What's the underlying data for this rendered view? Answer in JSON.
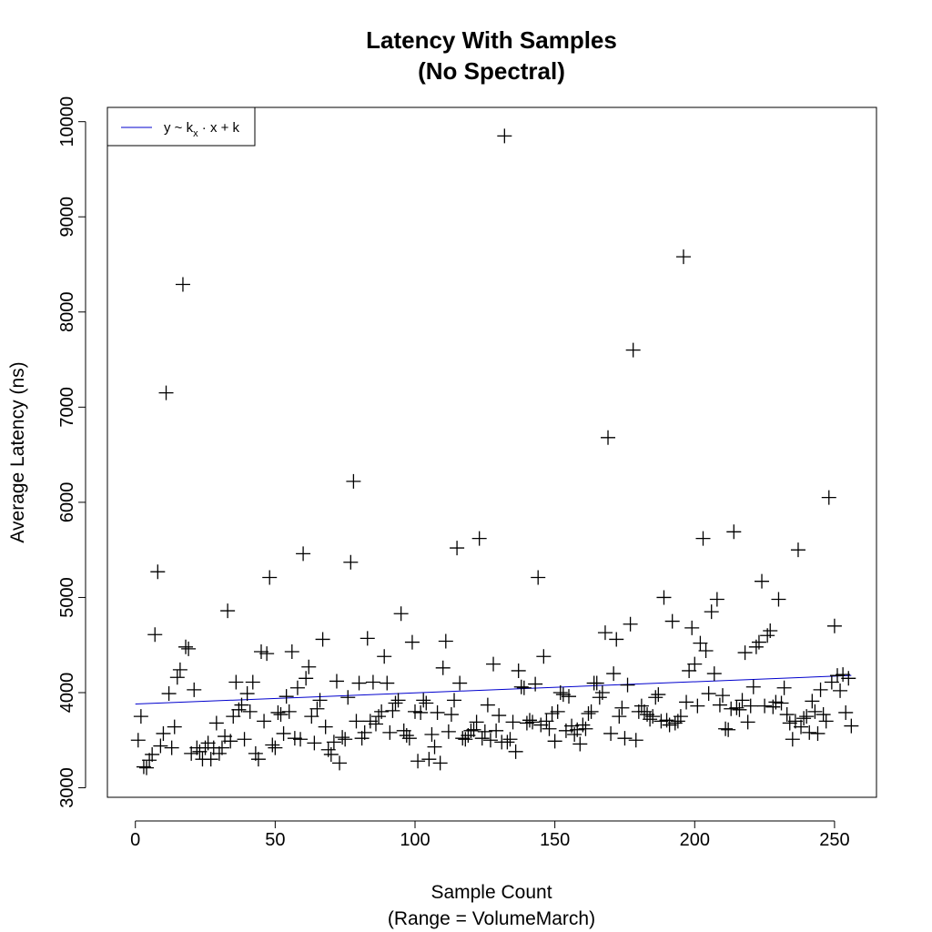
{
  "chart_data": {
    "type": "scatter",
    "title": [
      "Latency With Samples",
      "(No Spectral)"
    ],
    "xlabel": [
      "Sample Count",
      "(Range = VolumeMarch)"
    ],
    "ylabel": "Average Latency (ns)",
    "xlim": [
      -10,
      265
    ],
    "ylim": [
      2900,
      10150
    ],
    "x_ticks": [
      0,
      50,
      100,
      150,
      200,
      250
    ],
    "y_ticks": [
      3000,
      4000,
      5000,
      6000,
      7000,
      8000,
      9000,
      10000
    ],
    "grid": false,
    "legend": {
      "position": "top-left",
      "entries": [
        {
          "label_parts": [
            "y ~ k",
            "x",
            " · x + k"
          ],
          "color": "#0000cd"
        }
      ]
    },
    "series": [
      {
        "marker": "plus",
        "color": "#000000",
        "points": [
          [
            1,
            3500
          ],
          [
            2,
            3750
          ],
          [
            3,
            3220
          ],
          [
            4,
            3210
          ],
          [
            5,
            3290
          ],
          [
            6,
            3350
          ],
          [
            7,
            4610
          ],
          [
            8,
            5270
          ],
          [
            9,
            3440
          ],
          [
            10,
            3570
          ],
          [
            11,
            7150
          ],
          [
            12,
            3990
          ],
          [
            13,
            3420
          ],
          [
            14,
            3640
          ],
          [
            15,
            4160
          ],
          [
            16,
            4240
          ],
          [
            17,
            8290
          ],
          [
            18,
            4480
          ],
          [
            19,
            4460
          ],
          [
            20,
            3360
          ],
          [
            21,
            4030
          ],
          [
            22,
            3420
          ],
          [
            23,
            3380
          ],
          [
            24,
            3300
          ],
          [
            25,
            3420
          ],
          [
            26,
            3470
          ],
          [
            27,
            3300
          ],
          [
            28,
            3420
          ],
          [
            29,
            3680
          ],
          [
            30,
            3360
          ],
          [
            31,
            3420
          ],
          [
            32,
            3540
          ],
          [
            33,
            4860
          ],
          [
            34,
            3490
          ],
          [
            35,
            3750
          ],
          [
            36,
            4110
          ],
          [
            37,
            3820
          ],
          [
            38,
            3870
          ],
          [
            39,
            3510
          ],
          [
            40,
            3990
          ],
          [
            41,
            3800
          ],
          [
            42,
            4110
          ],
          [
            43,
            3360
          ],
          [
            44,
            3300
          ],
          [
            45,
            4430
          ],
          [
            46,
            3700
          ],
          [
            47,
            4410
          ],
          [
            48,
            5210
          ],
          [
            49,
            3450
          ],
          [
            50,
            3420
          ],
          [
            51,
            3790
          ],
          [
            52,
            3770
          ],
          [
            53,
            3570
          ],
          [
            54,
            3960
          ],
          [
            55,
            3800
          ],
          [
            56,
            4430
          ],
          [
            57,
            3520
          ],
          [
            58,
            4050
          ],
          [
            59,
            3510
          ],
          [
            60,
            5460
          ],
          [
            61,
            4150
          ],
          [
            62,
            4270
          ],
          [
            63,
            3750
          ],
          [
            64,
            3470
          ],
          [
            65,
            3830
          ],
          [
            66,
            3920
          ],
          [
            67,
            4560
          ],
          [
            68,
            3640
          ],
          [
            69,
            3400
          ],
          [
            70,
            3350
          ],
          [
            71,
            3480
          ],
          [
            72,
            4120
          ],
          [
            73,
            3260
          ],
          [
            74,
            3530
          ],
          [
            75,
            3510
          ],
          [
            76,
            3950
          ],
          [
            77,
            5370
          ],
          [
            78,
            6220
          ],
          [
            79,
            3700
          ],
          [
            80,
            4100
          ],
          [
            81,
            3520
          ],
          [
            82,
            3580
          ],
          [
            83,
            4570
          ],
          [
            84,
            3700
          ],
          [
            85,
            4110
          ],
          [
            86,
            3670
          ],
          [
            87,
            3750
          ],
          [
            88,
            3800
          ],
          [
            89,
            4380
          ],
          [
            90,
            4100
          ],
          [
            91,
            3580
          ],
          [
            92,
            3810
          ],
          [
            93,
            3890
          ],
          [
            94,
            3920
          ],
          [
            95,
            4830
          ],
          [
            96,
            3600
          ],
          [
            97,
            3550
          ],
          [
            98,
            3520
          ],
          [
            99,
            4530
          ],
          [
            100,
            3800
          ],
          [
            101,
            3280
          ],
          [
            102,
            3790
          ],
          [
            103,
            3920
          ],
          [
            104,
            3890
          ],
          [
            105,
            3300
          ],
          [
            106,
            3560
          ],
          [
            107,
            3430
          ],
          [
            108,
            3790
          ],
          [
            109,
            3260
          ],
          [
            110,
            4260
          ],
          [
            111,
            4540
          ],
          [
            112,
            3590
          ],
          [
            113,
            3770
          ],
          [
            114,
            3920
          ],
          [
            115,
            5520
          ],
          [
            116,
            4100
          ],
          [
            117,
            3520
          ],
          [
            118,
            3510
          ],
          [
            119,
            3550
          ],
          [
            120,
            3600
          ],
          [
            121,
            3610
          ],
          [
            122,
            3690
          ],
          [
            123,
            5620
          ],
          [
            124,
            3520
          ],
          [
            125,
            3590
          ],
          [
            126,
            3870
          ],
          [
            127,
            3500
          ],
          [
            128,
            4300
          ],
          [
            129,
            3600
          ],
          [
            130,
            3760
          ],
          [
            131,
            3480
          ],
          [
            132,
            9850
          ],
          [
            133,
            3480
          ],
          [
            134,
            3510
          ],
          [
            135,
            3690
          ],
          [
            136,
            3380
          ],
          [
            137,
            4230
          ],
          [
            138,
            4060
          ],
          [
            139,
            4050
          ],
          [
            140,
            3680
          ],
          [
            141,
            3710
          ],
          [
            142,
            3690
          ],
          [
            143,
            4090
          ],
          [
            144,
            5210
          ],
          [
            145,
            3660
          ],
          [
            146,
            4380
          ],
          [
            147,
            3700
          ],
          [
            148,
            3620
          ],
          [
            149,
            3780
          ],
          [
            150,
            3490
          ],
          [
            151,
            3800
          ],
          [
            152,
            4000
          ],
          [
            153,
            3980
          ],
          [
            154,
            3600
          ],
          [
            155,
            3960
          ],
          [
            156,
            3650
          ],
          [
            157,
            3560
          ],
          [
            158,
            3610
          ],
          [
            159,
            3460
          ],
          [
            160,
            3660
          ],
          [
            161,
            3620
          ],
          [
            162,
            3780
          ],
          [
            163,
            3800
          ],
          [
            164,
            4100
          ],
          [
            165,
            4100
          ],
          [
            166,
            3950
          ],
          [
            167,
            4000
          ],
          [
            168,
            4630
          ],
          [
            169,
            6680
          ],
          [
            170,
            3570
          ],
          [
            171,
            4200
          ],
          [
            172,
            4560
          ],
          [
            173,
            3750
          ],
          [
            174,
            3840
          ],
          [
            175,
            3520
          ],
          [
            176,
            4080
          ],
          [
            177,
            4720
          ],
          [
            178,
            7600
          ],
          [
            179,
            3500
          ],
          [
            180,
            3800
          ],
          [
            181,
            3860
          ],
          [
            182,
            3800
          ],
          [
            183,
            3770
          ],
          [
            184,
            3720
          ],
          [
            185,
            3750
          ],
          [
            186,
            3950
          ],
          [
            187,
            3980
          ],
          [
            188,
            3700
          ],
          [
            189,
            5000
          ],
          [
            190,
            3710
          ],
          [
            191,
            3660
          ],
          [
            192,
            4750
          ],
          [
            193,
            3680
          ],
          [
            194,
            3700
          ],
          [
            195,
            3750
          ],
          [
            196,
            8580
          ],
          [
            197,
            3900
          ],
          [
            198,
            4230
          ],
          [
            199,
            4680
          ],
          [
            200,
            4300
          ],
          [
            201,
            3860
          ],
          [
            202,
            4520
          ],
          [
            203,
            5620
          ],
          [
            204,
            4440
          ],
          [
            205,
            3990
          ],
          [
            206,
            4850
          ],
          [
            207,
            4200
          ],
          [
            208,
            4980
          ],
          [
            209,
            3870
          ],
          [
            210,
            3970
          ],
          [
            211,
            3620
          ],
          [
            212,
            3610
          ],
          [
            213,
            3830
          ],
          [
            214,
            5690
          ],
          [
            215,
            3840
          ],
          [
            216,
            3820
          ],
          [
            217,
            3920
          ],
          [
            218,
            4420
          ],
          [
            219,
            3690
          ],
          [
            220,
            3860
          ],
          [
            221,
            4060
          ],
          [
            222,
            4480
          ],
          [
            223,
            4530
          ],
          [
            224,
            5170
          ],
          [
            225,
            3860
          ],
          [
            226,
            4600
          ],
          [
            227,
            4650
          ],
          [
            228,
            3850
          ],
          [
            229,
            3900
          ],
          [
            230,
            4980
          ],
          [
            231,
            3890
          ],
          [
            232,
            4050
          ],
          [
            233,
            3770
          ],
          [
            234,
            3680
          ],
          [
            235,
            3510
          ],
          [
            236,
            3700
          ],
          [
            237,
            5500
          ],
          [
            238,
            3640
          ],
          [
            239,
            3730
          ],
          [
            240,
            3750
          ],
          [
            241,
            3580
          ],
          [
            242,
            3910
          ],
          [
            243,
            3800
          ],
          [
            244,
            3570
          ],
          [
            245,
            4030
          ],
          [
            246,
            3770
          ],
          [
            247,
            3700
          ],
          [
            248,
            6050
          ],
          [
            249,
            4110
          ],
          [
            250,
            4700
          ],
          [
            251,
            4180
          ],
          [
            252,
            4020
          ],
          [
            253,
            4190
          ],
          [
            254,
            3790
          ],
          [
            255,
            4150
          ],
          [
            256,
            3650
          ]
        ]
      }
    ],
    "fit_line": {
      "x": [
        0,
        256
      ],
      "y": [
        3880,
        4180
      ],
      "color": "#0000cd"
    }
  }
}
